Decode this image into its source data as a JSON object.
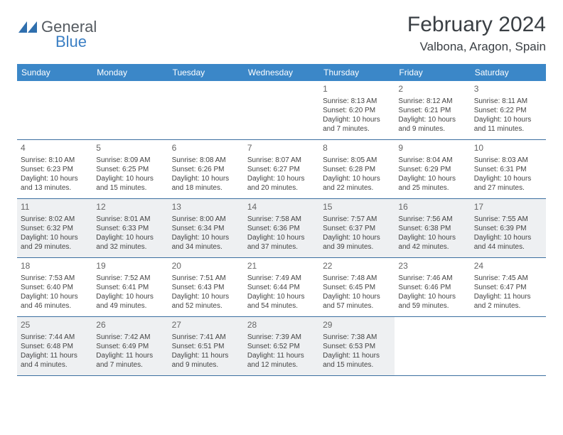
{
  "brand": {
    "name1": "General",
    "name2": "Blue",
    "logo_color": "#2f6fae"
  },
  "header": {
    "month_title": "February 2024",
    "location": "Valbona, Aragon, Spain"
  },
  "colors": {
    "header_bar": "#3b87c8",
    "rule": "#3b6fa0",
    "shaded": "#eef0f2",
    "text": "#444444"
  },
  "day_names": [
    "Sunday",
    "Monday",
    "Tuesday",
    "Wednesday",
    "Thursday",
    "Friday",
    "Saturday"
  ],
  "weeks": [
    [
      null,
      null,
      null,
      null,
      {
        "n": "1",
        "sr": "8:13 AM",
        "ss": "6:20 PM",
        "dl": "10 hours and 7 minutes."
      },
      {
        "n": "2",
        "sr": "8:12 AM",
        "ss": "6:21 PM",
        "dl": "10 hours and 9 minutes."
      },
      {
        "n": "3",
        "sr": "8:11 AM",
        "ss": "6:22 PM",
        "dl": "10 hours and 11 minutes."
      }
    ],
    [
      {
        "n": "4",
        "sr": "8:10 AM",
        "ss": "6:23 PM",
        "dl": "10 hours and 13 minutes."
      },
      {
        "n": "5",
        "sr": "8:09 AM",
        "ss": "6:25 PM",
        "dl": "10 hours and 15 minutes."
      },
      {
        "n": "6",
        "sr": "8:08 AM",
        "ss": "6:26 PM",
        "dl": "10 hours and 18 minutes."
      },
      {
        "n": "7",
        "sr": "8:07 AM",
        "ss": "6:27 PM",
        "dl": "10 hours and 20 minutes."
      },
      {
        "n": "8",
        "sr": "8:05 AM",
        "ss": "6:28 PM",
        "dl": "10 hours and 22 minutes."
      },
      {
        "n": "9",
        "sr": "8:04 AM",
        "ss": "6:29 PM",
        "dl": "10 hours and 25 minutes."
      },
      {
        "n": "10",
        "sr": "8:03 AM",
        "ss": "6:31 PM",
        "dl": "10 hours and 27 minutes."
      }
    ],
    [
      {
        "n": "11",
        "sr": "8:02 AM",
        "ss": "6:32 PM",
        "dl": "10 hours and 29 minutes."
      },
      {
        "n": "12",
        "sr": "8:01 AM",
        "ss": "6:33 PM",
        "dl": "10 hours and 32 minutes."
      },
      {
        "n": "13",
        "sr": "8:00 AM",
        "ss": "6:34 PM",
        "dl": "10 hours and 34 minutes."
      },
      {
        "n": "14",
        "sr": "7:58 AM",
        "ss": "6:36 PM",
        "dl": "10 hours and 37 minutes."
      },
      {
        "n": "15",
        "sr": "7:57 AM",
        "ss": "6:37 PM",
        "dl": "10 hours and 39 minutes."
      },
      {
        "n": "16",
        "sr": "7:56 AM",
        "ss": "6:38 PM",
        "dl": "10 hours and 42 minutes."
      },
      {
        "n": "17",
        "sr": "7:55 AM",
        "ss": "6:39 PM",
        "dl": "10 hours and 44 minutes."
      }
    ],
    [
      {
        "n": "18",
        "sr": "7:53 AM",
        "ss": "6:40 PM",
        "dl": "10 hours and 46 minutes."
      },
      {
        "n": "19",
        "sr": "7:52 AM",
        "ss": "6:41 PM",
        "dl": "10 hours and 49 minutes."
      },
      {
        "n": "20",
        "sr": "7:51 AM",
        "ss": "6:43 PM",
        "dl": "10 hours and 52 minutes."
      },
      {
        "n": "21",
        "sr": "7:49 AM",
        "ss": "6:44 PM",
        "dl": "10 hours and 54 minutes."
      },
      {
        "n": "22",
        "sr": "7:48 AM",
        "ss": "6:45 PM",
        "dl": "10 hours and 57 minutes."
      },
      {
        "n": "23",
        "sr": "7:46 AM",
        "ss": "6:46 PM",
        "dl": "10 hours and 59 minutes."
      },
      {
        "n": "24",
        "sr": "7:45 AM",
        "ss": "6:47 PM",
        "dl": "11 hours and 2 minutes."
      }
    ],
    [
      {
        "n": "25",
        "sr": "7:44 AM",
        "ss": "6:48 PM",
        "dl": "11 hours and 4 minutes."
      },
      {
        "n": "26",
        "sr": "7:42 AM",
        "ss": "6:49 PM",
        "dl": "11 hours and 7 minutes."
      },
      {
        "n": "27",
        "sr": "7:41 AM",
        "ss": "6:51 PM",
        "dl": "11 hours and 9 minutes."
      },
      {
        "n": "28",
        "sr": "7:39 AM",
        "ss": "6:52 PM",
        "dl": "11 hours and 12 minutes."
      },
      {
        "n": "29",
        "sr": "7:38 AM",
        "ss": "6:53 PM",
        "dl": "11 hours and 15 minutes."
      },
      null,
      null
    ]
  ],
  "labels": {
    "sunrise": "Sunrise:",
    "sunset": "Sunset:",
    "daylight": "Daylight:"
  },
  "shaded_weeks": [
    2,
    4
  ],
  "fonts": {
    "title_size": 30,
    "location_size": 17,
    "dow_size": 12,
    "cell_size": 10
  }
}
